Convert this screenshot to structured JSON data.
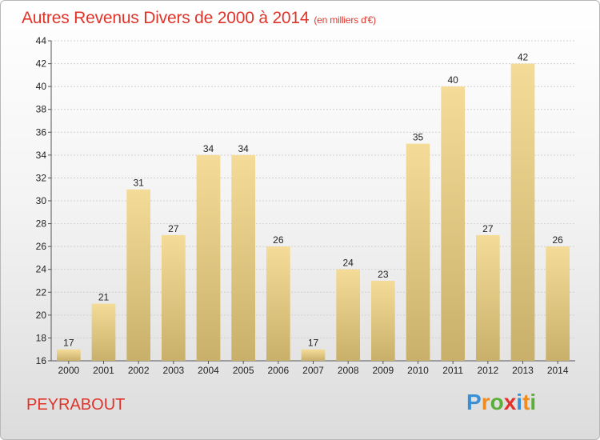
{
  "title": "Autres Revenus Divers de 2000 à 2014",
  "unit": "(en milliers d'€)",
  "place": "PEYRABOUT",
  "logo": {
    "letters": [
      "P",
      "r",
      "o",
      "x",
      "i",
      "t",
      "i"
    ],
    "colors": [
      "#3a8fd6",
      "#ef8b1f",
      "#5aaf36",
      "#e4302a",
      "#3a8fd6",
      "#ef8b1f",
      "#5aaf36"
    ]
  },
  "colors": {
    "bar_top": "#f4dc98",
    "bar_bottom": "#c9b06a",
    "title": "#e0342a"
  },
  "chart_data": {
    "type": "bar",
    "categories": [
      "2000",
      "2001",
      "2002",
      "2003",
      "2004",
      "2005",
      "2006",
      "2007",
      "2008",
      "2009",
      "2010",
      "2011",
      "2012",
      "2013",
      "2014"
    ],
    "values": [
      17,
      21,
      31,
      27,
      34,
      34,
      26,
      17,
      24,
      23,
      35,
      40,
      27,
      42,
      26
    ],
    "ylim": [
      16,
      44
    ],
    "yticks": [
      16,
      18,
      20,
      22,
      24,
      26,
      28,
      30,
      32,
      34,
      36,
      38,
      40,
      42,
      44
    ],
    "grid": true
  }
}
